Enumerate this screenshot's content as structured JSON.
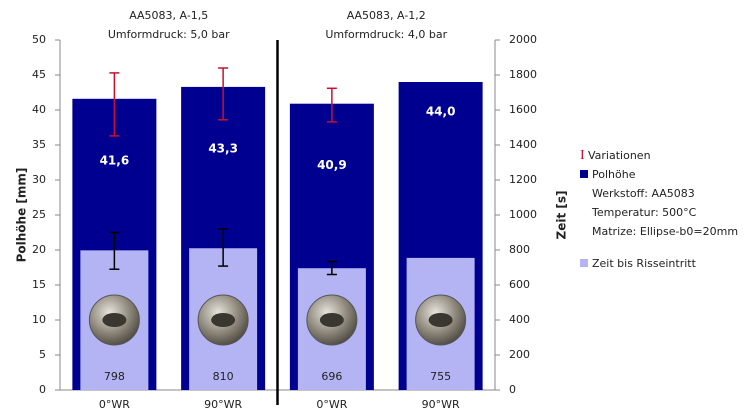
{
  "chart_data": {
    "type": "bar",
    "categories": [
      "0°WR",
      "90°WR",
      "0°WR",
      "90°WR"
    ],
    "group_titles": [
      [
        "AA5083,   A-1,5",
        "Umformdruck: 5,0 bar"
      ],
      [
        "AA5083,   A-1,2",
        "Umformdruck: 4,0 bar"
      ]
    ],
    "ylabel": "Polhöhe [mm]",
    "y2label": "Zeit [s]",
    "ylim": [
      0,
      50
    ],
    "yticks": [
      0,
      5,
      10,
      15,
      20,
      25,
      30,
      35,
      40,
      45,
      50
    ],
    "y2lim": [
      0,
      2000
    ],
    "y2ticks": [
      0,
      200,
      400,
      600,
      800,
      1000,
      1200,
      1400,
      1600,
      1800,
      2000
    ],
    "error_legend": {
      "name": "Variationen",
      "color": "#c8102e"
    },
    "series": [
      {
        "name": "Polhöhe",
        "color": "#000090",
        "values": [
          41.6,
          43.3,
          40.9,
          44.0
        ],
        "value_labels": [
          "41,6",
          "43,3",
          "40,9",
          "44,0"
        ],
        "errors_minus": [
          5.3,
          4.7,
          2.6,
          null
        ],
        "errors_plus": [
          3.7,
          2.7,
          2.2,
          null
        ],
        "error_color": "#c8102e",
        "notes": [
          "Werkstoff: AA5083",
          "Temperatur: 500°C",
          "Matrize: Ellipse-b0=20mm"
        ]
      },
      {
        "name": "Zeit bis Risseintritt",
        "color": "#b4b4f5",
        "axis": "y2",
        "values": [
          798,
          810,
          696,
          755
        ],
        "errors_minus": [
          108,
          102,
          36,
          null
        ],
        "errors_plus": [
          102,
          110,
          39,
          null
        ],
        "error_color": "#000000"
      }
    ]
  }
}
